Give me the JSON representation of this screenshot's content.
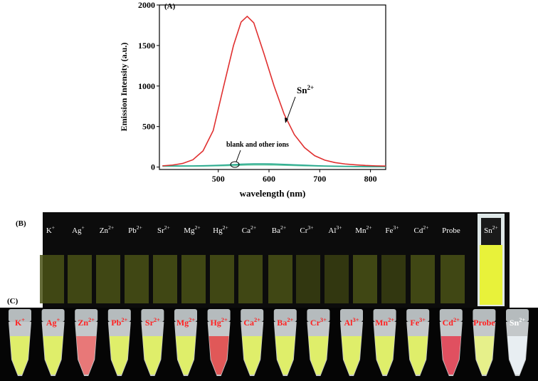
{
  "chart_data": {
    "type": "line",
    "xlabel": "wavelength (nm)",
    "ylabel": "Emission Intensity (a.u.)",
    "x": [
      390,
      410,
      430,
      450,
      470,
      490,
      510,
      530,
      545,
      557,
      570,
      590,
      610,
      630,
      650,
      670,
      690,
      710,
      730,
      750,
      770,
      790,
      810,
      830
    ],
    "series": [
      {
        "color": "#e03030",
        "values": [
          15,
          25,
          45,
          90,
          200,
          450,
          980,
          1500,
          1790,
          1860,
          1780,
          1400,
          1000,
          650,
          400,
          240,
          140,
          85,
          55,
          38,
          28,
          20,
          15,
          12
        ]
      },
      {
        "color": "#2aa890",
        "values": [
          15,
          15,
          15,
          15,
          17,
          20,
          25,
          30,
          35,
          38,
          40,
          40,
          38,
          33,
          28,
          23,
          18,
          14,
          11,
          9,
          7,
          6,
          5,
          5
        ]
      },
      {
        "color": "#5fc8a0",
        "values": [
          10,
          10,
          10,
          11,
          12,
          14,
          17,
          20,
          23,
          25,
          26,
          26,
          25,
          22,
          19,
          16,
          13,
          10,
          8,
          7,
          6,
          5,
          4,
          4
        ]
      }
    ],
    "xlim": [
      384,
      830
    ],
    "xticks": [
      500,
      600,
      700,
      800
    ],
    "ylim": [
      -30,
      2000
    ],
    "yticks": [
      0,
      500,
      1000,
      1500,
      2000
    ],
    "annotations": [
      {
        "base": "Sn",
        "sup": "2+"
      },
      {
        "text": "blank and other ions"
      }
    ]
  },
  "panel_labels": [
    "(A)",
    "(B)",
    "(C)"
  ],
  "ions": [
    {
      "base": "K",
      "sup": "+"
    },
    {
      "base": "Ag",
      "sup": "+"
    },
    {
      "base": "Zn",
      "sup": "2+"
    },
    {
      "base": "Pb",
      "sup": "2+"
    },
    {
      "base": "Sr",
      "sup": "2+"
    },
    {
      "base": "Mg",
      "sup": "2+"
    },
    {
      "base": "Hg",
      "sup": "2+"
    },
    {
      "base": "Ca",
      "sup": "2+"
    },
    {
      "base": "Ba",
      "sup": "2+"
    },
    {
      "base": "Cr",
      "sup": "3+"
    },
    {
      "base": "Al",
      "sup": "3+"
    },
    {
      "base": "Mn",
      "sup": "2+"
    },
    {
      "base": "Fe",
      "sup": "3+"
    },
    {
      "base": "Cd",
      "sup": "2+"
    },
    {
      "base": "Probe"
    },
    {
      "base": "Sn",
      "sup": "2+"
    }
  ],
  "vial_colors": [
    "#4a5216",
    "#4a5216",
    "#4a5216",
    "#4a5216",
    "#4a5216",
    "#4a5216",
    "#4a5216",
    "#4a5216",
    "#4a5216",
    "#3a3f12",
    "#3a3f12",
    "#4a5216",
    "#3a3f12",
    "#4a5216",
    "#4a5216",
    "#e8f23a"
  ],
  "tube_colors": [
    "#dfee6a",
    "#dfee6a",
    "#e87878",
    "#dfee6a",
    "#dfee6a",
    "#dfee6a",
    "#e05858",
    "#dfee6a",
    "#dfee6a",
    "#dfee6a",
    "#dfee6a",
    "#dfee6a",
    "#dfee6a",
    "#e05060",
    "#e6f08a",
    "#e8eef2"
  ]
}
